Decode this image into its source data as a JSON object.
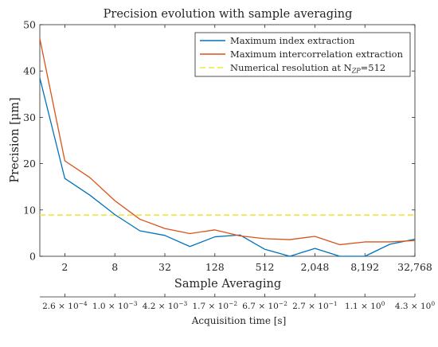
{
  "chart_data": {
    "type": "line",
    "title": "Precision evolution with sample averaging",
    "xlabel": "Sample Averaging",
    "ylabel": "Precision [μm]",
    "x_scale": "log2",
    "x": [
      1,
      2,
      4,
      8,
      16,
      32,
      64,
      128,
      256,
      512,
      1024,
      2048,
      4096,
      8192,
      16384,
      32768
    ],
    "xticks": [
      2,
      8,
      32,
      128,
      512,
      2048,
      8192,
      32768
    ],
    "xtick_labels": [
      "2",
      "8",
      "32",
      "128",
      "512",
      "2,048",
      "8,192",
      "32,768"
    ],
    "ylim": [
      0,
      50
    ],
    "yticks": [
      0,
      10,
      20,
      30,
      40,
      50
    ],
    "ytick_labels": [
      "0",
      "10",
      "20",
      "30",
      "40",
      "50"
    ],
    "series": [
      {
        "name": "Maximum index extraction",
        "color": "#0072BD",
        "values": [
          38.5,
          16.8,
          13.2,
          9.0,
          5.5,
          4.5,
          2.1,
          4.2,
          4.6,
          1.5,
          0.0,
          1.7,
          0.0,
          0.0,
          2.6,
          3.7
        ]
      },
      {
        "name": "Maximum intercorrelation extraction",
        "color": "#D95319",
        "values": [
          47.0,
          20.6,
          17.0,
          12.0,
          8.0,
          6.0,
          4.9,
          5.7,
          4.4,
          3.8,
          3.6,
          4.3,
          2.5,
          3.1,
          3.1,
          3.4
        ]
      }
    ],
    "reference_line": {
      "name": "Numerical resolution at N",
      "name_sub": "ZP",
      "name_suffix": "=512",
      "value": 8.9,
      "color": "#EDE83A",
      "style": "dashed"
    },
    "legend_position": "top-right",
    "grid": false,
    "secondary_axis": {
      "label": "Acquisition time [s]",
      "tick_labels": [
        {
          "mant": "2.6",
          "exp": "−4"
        },
        {
          "mant": "1.0",
          "exp": "−3"
        },
        {
          "mant": "4.2",
          "exp": "−3"
        },
        {
          "mant": "1.7",
          "exp": "−2"
        },
        {
          "mant": "6.7",
          "exp": "−2"
        },
        {
          "mant": "2.7",
          "exp": "−1"
        },
        {
          "mant": "1.1",
          "exp": "0"
        },
        {
          "mant": "4.3",
          "exp": "0"
        }
      ]
    }
  }
}
